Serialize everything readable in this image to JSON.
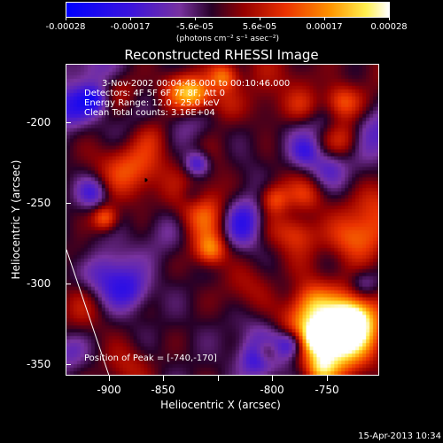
{
  "colorbar": {
    "ticks": [
      "-0.00028",
      "-0.00017",
      "-5.6e-05",
      "5.6e-05",
      "0.00017",
      "0.00028"
    ],
    "units": "(photons cm⁻² s⁻¹ asec⁻²)"
  },
  "title": "Reconstructed RHESSI Image",
  "annotations": {
    "time": "3-Nov-2002 00:04:48.000 to 00:10:46.000",
    "detectors": "Detectors: 4F 5F 6F 7F 8F, Att 0",
    "energy": "Energy Range: 12.0 - 25.0 keV",
    "clean": "Clean    Total counts: 3.16E+04",
    "peak": "Position of Peak = [-740,-170]"
  },
  "axes": {
    "xlabel": "Heliocentric X (arcsec)",
    "ylabel": "Heliocentric Y (arcsec)",
    "xticks": [
      "-900",
      "-850",
      "-800",
      "-750"
    ],
    "yticks": [
      "-200",
      "-250",
      "-300",
      "-350"
    ]
  },
  "timestamp": "15-Apr-2013 10:34",
  "chart_data": {
    "type": "heatmap",
    "title": "Reconstructed RHESSI Image",
    "xlabel": "Heliocentric X (arcsec)",
    "ylabel": "Heliocentric Y (arcsec)",
    "xlim": [
      -925,
      -735
    ],
    "ylim": [
      -360,
      -170
    ],
    "color_range": [
      -0.00028,
      0.00028
    ],
    "colormap": "blue-purple-red-orange-yellow-white",
    "peak": [
      -740,
      -170
    ]
  }
}
